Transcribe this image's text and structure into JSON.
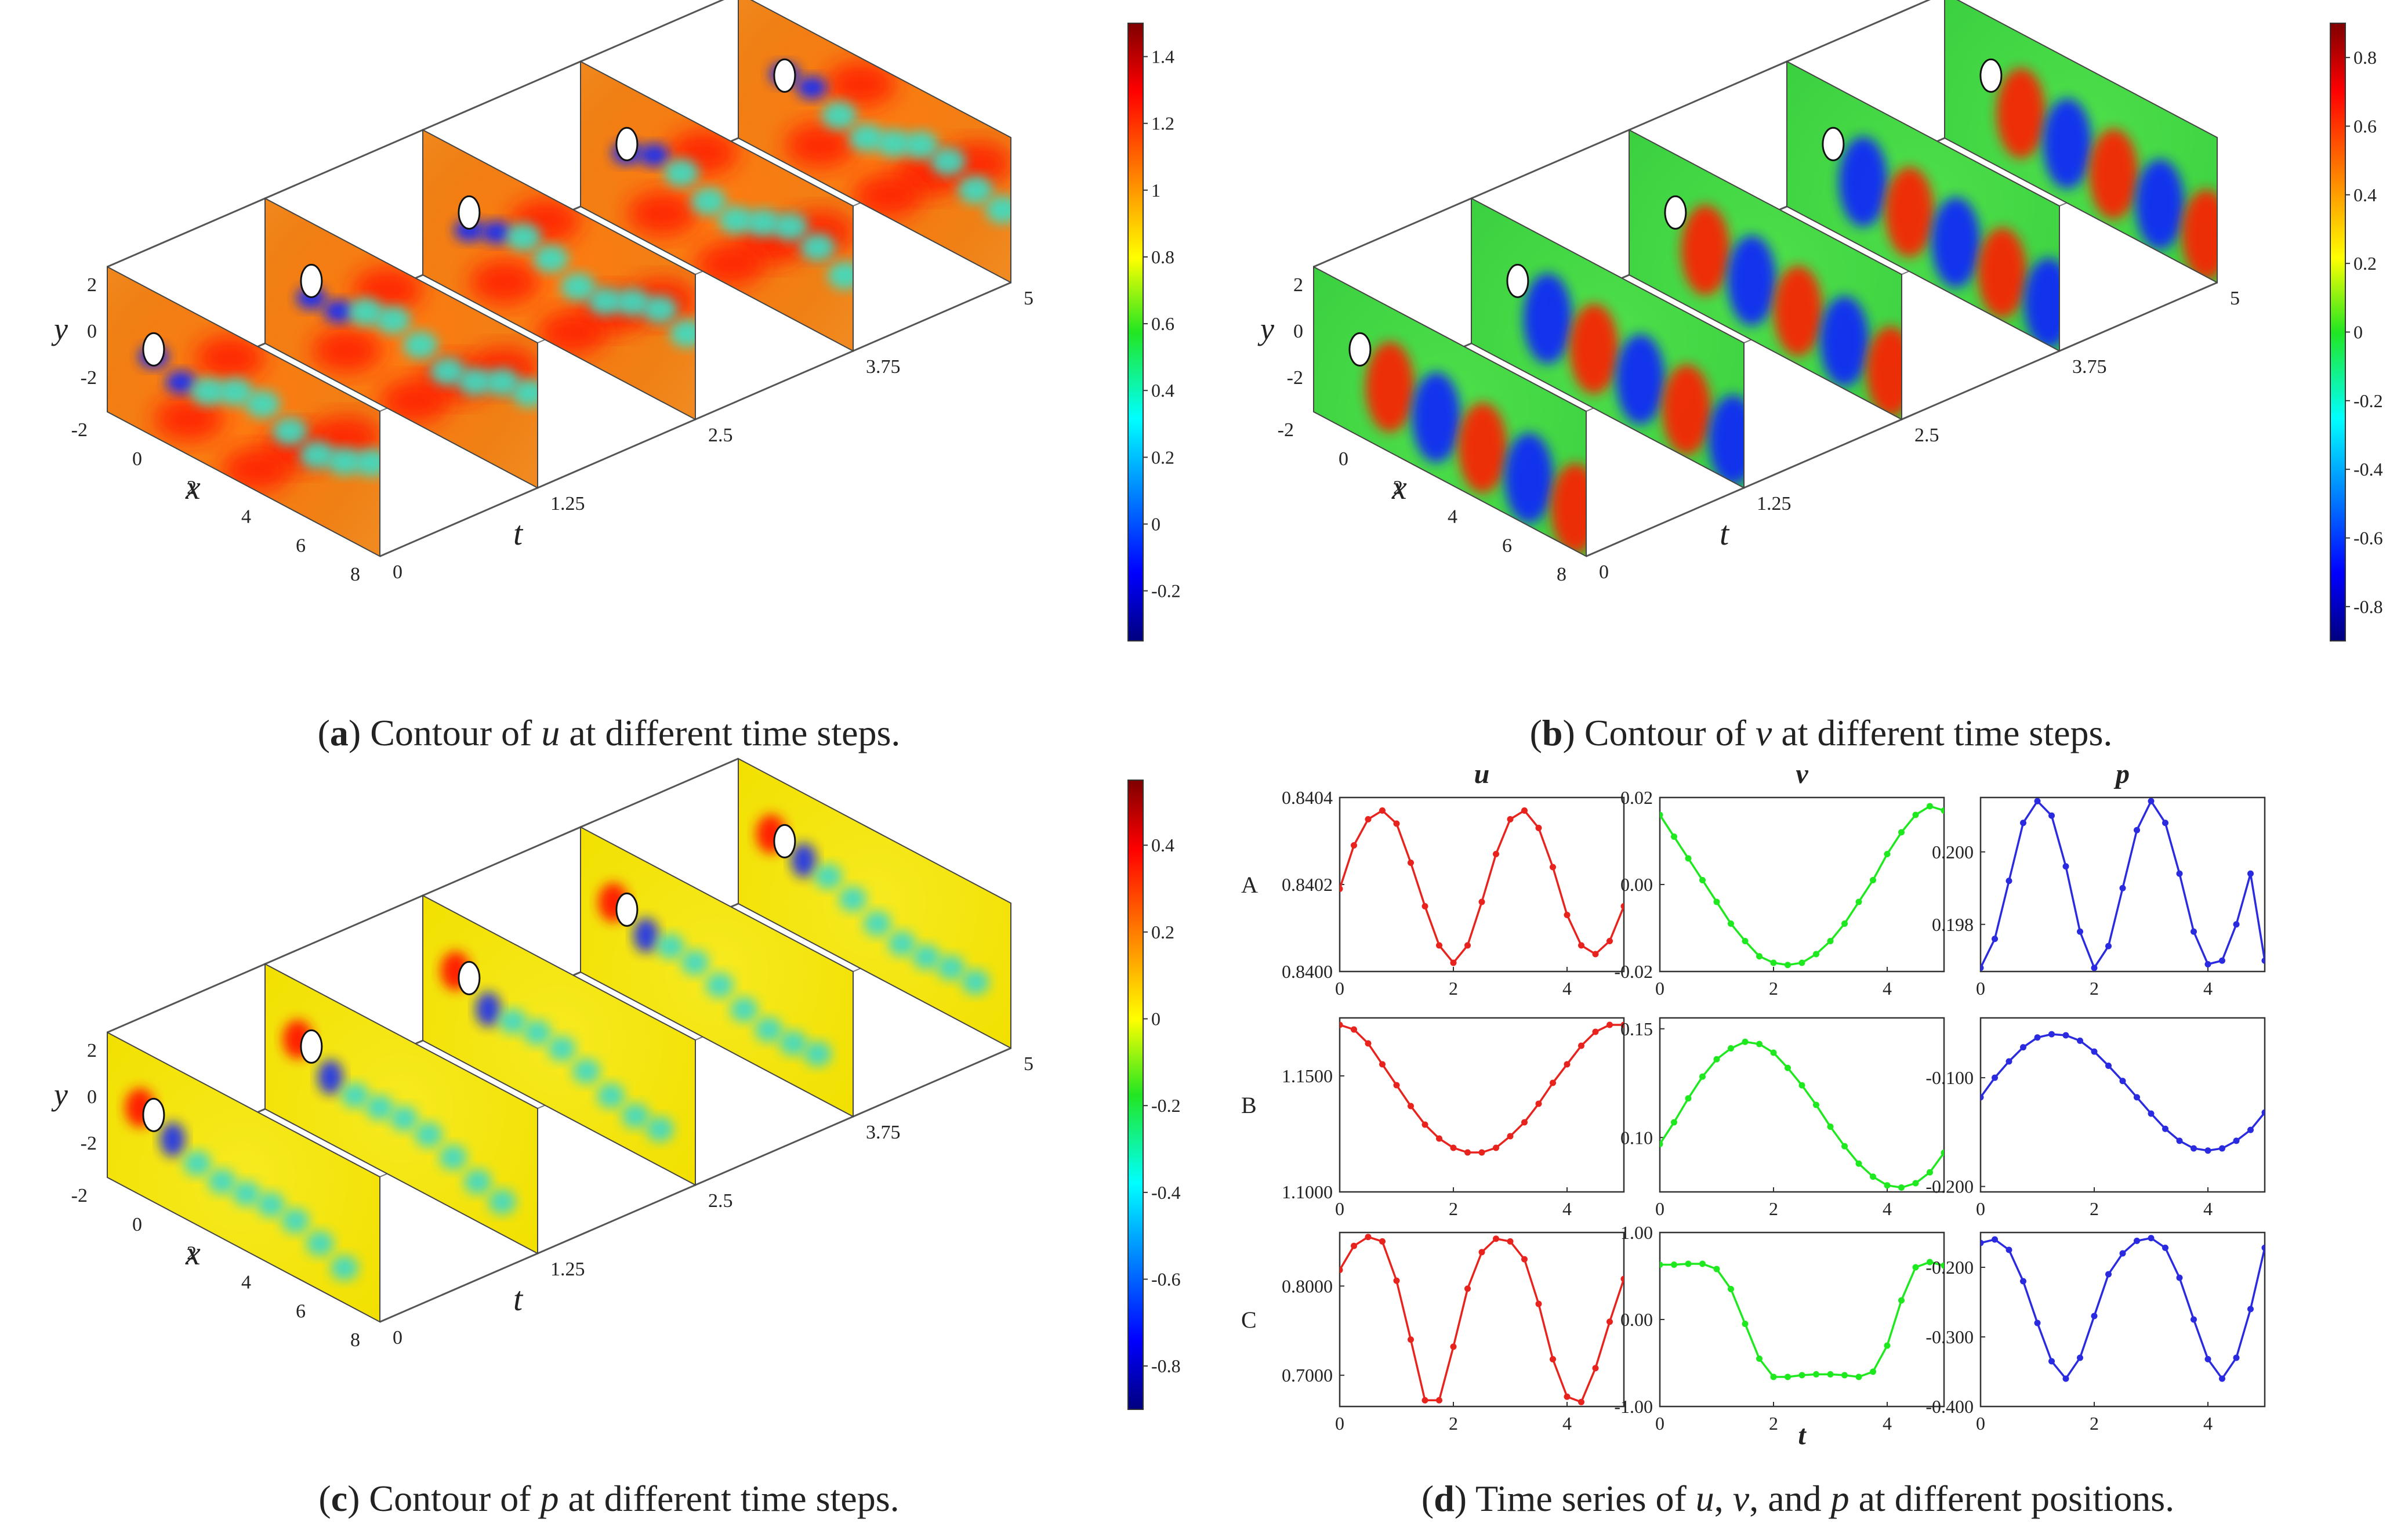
{
  "panels": {
    "a": {
      "letter": "a",
      "caption_pre": "Contour of ",
      "caption_var": "u",
      "caption_post": " at different time steps.",
      "colorbar_ticks": [
        "1.4",
        "1.2",
        "1",
        "0.8",
        "0.6",
        "0.4",
        "0.2",
        "0",
        "-0.2"
      ],
      "colorbar_range": [
        -0.35,
        1.5
      ]
    },
    "b": {
      "letter": "b",
      "caption_pre": "Contour of ",
      "caption_var": "v",
      "caption_post": " at different time steps.",
      "colorbar_ticks": [
        "0.8",
        "0.6",
        "0.4",
        "0.2",
        "0",
        "-0.2",
        "-0.4",
        "-0.6",
        "-0.8"
      ],
      "colorbar_range": [
        -0.9,
        0.9
      ]
    },
    "c": {
      "letter": "c",
      "caption_pre": "Contour of ",
      "caption_var": "p",
      "caption_post": " at different time steps.",
      "colorbar_ticks": [
        "0.4",
        "0.2",
        "0",
        "-0.2",
        "-0.4",
        "-0.6",
        "-0.8"
      ],
      "colorbar_range": [
        -0.9,
        0.55
      ]
    },
    "d": {
      "letter": "d",
      "caption_pre": "Time series of ",
      "caption_u": "u",
      "caption_sep1": ", ",
      "caption_v": "v",
      "caption_sep2": ", and ",
      "caption_p": "p",
      "caption_post": " at different positions."
    }
  },
  "axes3d": {
    "y_label": "y",
    "x_label": "x",
    "t_label": "t",
    "y_ticks": [
      "2",
      "0",
      "-2"
    ],
    "x_ticks": [
      "-2",
      "0",
      "2",
      "4",
      "6",
      "8"
    ],
    "t_ticks": [
      "0",
      "1.25",
      "2.5",
      "3.75",
      "5"
    ]
  },
  "chart_data": [
    {
      "type": "heatmap",
      "title": "Contour of u at different time steps",
      "variable": "u",
      "time_steps": [
        0,
        1.25,
        2.5,
        3.75,
        5
      ],
      "x_range": [
        -2,
        8
      ],
      "y_range": [
        -3,
        3
      ],
      "colorbar_range": [
        -0.35,
        1.5
      ]
    },
    {
      "type": "heatmap",
      "title": "Contour of v at different time steps",
      "variable": "v",
      "time_steps": [
        0,
        1.25,
        2.5,
        3.75,
        5
      ],
      "x_range": [
        -2,
        8
      ],
      "y_range": [
        -3,
        3
      ],
      "colorbar_range": [
        -0.9,
        0.9
      ]
    },
    {
      "type": "heatmap",
      "title": "Contour of p at different time steps",
      "variable": "p",
      "time_steps": [
        0,
        1.25,
        2.5,
        3.75,
        5
      ],
      "x_range": [
        -2,
        8
      ],
      "y_range": [
        -3,
        3
      ],
      "colorbar_range": [
        -0.9,
        0.55
      ]
    },
    {
      "type": "line",
      "title": "Time series of u, v, and p at different positions",
      "xlabel": "t",
      "column_titles": [
        "u",
        "v",
        "p"
      ],
      "row_labels": [
        "A",
        "B",
        "C"
      ],
      "x": [
        0,
        0.25,
        0.5,
        0.75,
        1,
        1.25,
        1.5,
        1.75,
        2,
        2.25,
        2.5,
        2.75,
        3,
        3.25,
        3.5,
        3.75,
        4,
        4.25,
        4.5,
        4.75,
        5
      ],
      "x_ticks": [
        "0",
        "2",
        "4"
      ],
      "subplots": [
        {
          "row": "A",
          "var": "u",
          "color": "#e8221c",
          "ylim": [
            0.84,
            0.8404
          ],
          "yticks": [
            "0.8404",
            "0.8402",
            "0.8400"
          ],
          "ytick_vals": [
            0.8404,
            0.8402,
            0.84
          ],
          "values": [
            0.84019,
            0.84029,
            0.84035,
            0.84037,
            0.84034,
            0.84025,
            0.84015,
            0.84006,
            0.84002,
            0.84006,
            0.84016,
            0.84027,
            0.84035,
            0.84037,
            0.84033,
            0.84024,
            0.84013,
            0.84006,
            0.84004,
            0.84007,
            0.84015
          ]
        },
        {
          "row": "A",
          "var": "v",
          "color": "#1ee81e",
          "ylim": [
            -0.02,
            0.02
          ],
          "yticks": [
            "0.02",
            "0.00",
            "-0.02"
          ],
          "ytick_vals": [
            0.02,
            0,
            -0.02
          ],
          "values": [
            0.016,
            0.011,
            0.006,
            0.001,
            -0.004,
            -0.009,
            -0.013,
            -0.0165,
            -0.018,
            -0.0185,
            -0.018,
            -0.016,
            -0.013,
            -0.009,
            -0.004,
            0.001,
            0.007,
            0.012,
            0.016,
            0.018,
            0.017
          ]
        },
        {
          "row": "A",
          "var": "p",
          "color": "#2a2ae0",
          "ylim": [
            0.1967,
            0.2015
          ],
          "yticks": [
            "0.200",
            "0.198"
          ],
          "ytick_vals": [
            0.2,
            0.198
          ],
          "values": [
            0.1968,
            0.1976,
            0.1992,
            0.2008,
            0.2014,
            0.201,
            0.1996,
            0.1978,
            0.1968,
            0.1974,
            0.199,
            0.2006,
            0.2014,
            0.2008,
            0.1994,
            0.1978,
            0.1969,
            0.197,
            0.198,
            0.1994,
            0.197
          ]
        },
        {
          "row": "B",
          "var": "u",
          "color": "#e8221c",
          "ylim": [
            1.1,
            1.175
          ],
          "yticks": [
            "1.1500",
            "1.1000"
          ],
          "ytick_vals": [
            1.15,
            1.1
          ],
          "values": [
            1.172,
            1.17,
            1.164,
            1.155,
            1.146,
            1.137,
            1.129,
            1.123,
            1.119,
            1.117,
            1.117,
            1.119,
            1.124,
            1.13,
            1.138,
            1.147,
            1.155,
            1.163,
            1.169,
            1.172,
            1.172
          ]
        },
        {
          "row": "B",
          "var": "v",
          "color": "#1ee81e",
          "ylim": [
            0.075,
            0.155
          ],
          "yticks": [
            "0.15",
            "0.10"
          ],
          "ytick_vals": [
            0.15,
            0.1
          ],
          "values": [
            0.097,
            0.107,
            0.118,
            0.128,
            0.136,
            0.141,
            0.144,
            0.143,
            0.139,
            0.132,
            0.124,
            0.115,
            0.105,
            0.096,
            0.088,
            0.082,
            0.078,
            0.077,
            0.079,
            0.084,
            0.093
          ]
        },
        {
          "row": "B",
          "var": "p",
          "color": "#2a2ae0",
          "ylim": [
            -0.205,
            -0.045
          ],
          "yticks": [
            "-0.100",
            "-0.200"
          ],
          "ytick_vals": [
            -0.1,
            -0.2
          ],
          "values": [
            -0.118,
            -0.1,
            -0.085,
            -0.072,
            -0.063,
            -0.06,
            -0.061,
            -0.066,
            -0.076,
            -0.089,
            -0.103,
            -0.118,
            -0.133,
            -0.147,
            -0.158,
            -0.165,
            -0.167,
            -0.165,
            -0.158,
            -0.148,
            -0.132
          ]
        },
        {
          "row": "C",
          "var": "u",
          "color": "#e8221c",
          "ylim": [
            0.665,
            0.86
          ],
          "yticks": [
            "0.8000",
            "0.7000"
          ],
          "ytick_vals": [
            0.8,
            0.7
          ],
          "values": [
            0.818,
            0.845,
            0.855,
            0.85,
            0.806,
            0.74,
            0.672,
            0.672,
            0.732,
            0.797,
            0.838,
            0.853,
            0.85,
            0.83,
            0.78,
            0.718,
            0.676,
            0.67,
            0.708,
            0.76,
            0.808
          ]
        },
        {
          "row": "C",
          "var": "v",
          "color": "#1ee81e",
          "ylim": [
            -1.0,
            1.0
          ],
          "yticks": [
            "1.00",
            "0.00",
            "-1.00"
          ],
          "ytick_vals": [
            1,
            0,
            -1
          ],
          "values": [
            0.63,
            0.63,
            0.64,
            0.64,
            0.58,
            0.35,
            -0.05,
            -0.45,
            -0.66,
            -0.66,
            -0.64,
            -0.63,
            -0.63,
            -0.64,
            -0.66,
            -0.6,
            -0.3,
            0.22,
            0.6,
            0.66,
            0.62
          ]
        },
        {
          "row": "C",
          "var": "p",
          "color": "#2a2ae0",
          "ylim": [
            -0.4,
            -0.15
          ],
          "yticks": [
            "-0.200",
            "-0.300",
            "-0.400"
          ],
          "ytick_vals": [
            -0.2,
            -0.3,
            -0.4
          ],
          "values": [
            -0.165,
            -0.16,
            -0.175,
            -0.22,
            -0.28,
            -0.335,
            -0.36,
            -0.33,
            -0.27,
            -0.21,
            -0.18,
            -0.162,
            -0.158,
            -0.172,
            -0.215,
            -0.275,
            -0.332,
            -0.36,
            -0.33,
            -0.26,
            -0.172
          ]
        }
      ]
    }
  ]
}
